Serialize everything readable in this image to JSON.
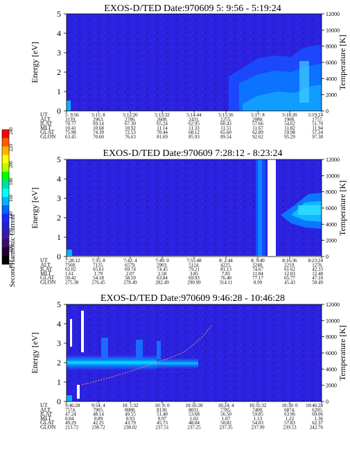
{
  "colorbar": {
    "label": "Second Harmonic Current",
    "ticks": [
      "240",
      "220",
      "200",
      "180",
      "160",
      "140",
      "120",
      "100",
      "80"
    ],
    "colors": [
      "#ff0000",
      "#ff5a00",
      "#ffb400",
      "#ffff00",
      "#b4ff00",
      "#00ff00",
      "#00e0a0",
      "#00ffff",
      "#00b4ff",
      "#0064ff",
      "#1a28ff",
      "#2020d8",
      "#3a1aa0",
      "#3a0a70",
      "#200030",
      "#000000"
    ]
  },
  "chart_data": [
    {
      "type": "heatmap",
      "title": "EXOS-D/TED   Date:970609  5: 9:56 - 5:19:24",
      "ylabel": "Energy [eV]",
      "ylabel_right": "Temperature [K]",
      "ylim": [
        0,
        5
      ],
      "ylim_right": [
        0,
        12000
      ],
      "yticks": [
        "0",
        "1",
        "2",
        "3",
        "4",
        "5"
      ],
      "yticks_right": [
        "0",
        "2000",
        "4000",
        "6000",
        "8000",
        "10000",
        "12000"
      ],
      "rows": [
        {
          "label": "UT",
          "values": [
            "5: 9:56",
            "5:11: 8",
            "5:12:20",
            "5:13:32",
            "5:14:44",
            "5:15:56",
            "5:17: 8",
            "5:18:20",
            "5:19:24"
          ]
        },
        {
          "label": "ALT",
          "values": [
            "3139.",
            "2963.",
            "2786.",
            "2608.",
            "2431.",
            "2255.",
            "2080.",
            "1908.",
            "1757."
          ]
        },
        {
          "label": "ILAT",
          "values": [
            "70.77",
            "69.14",
            "67.30",
            "65.24",
            "62.95",
            "60.43",
            "57.66",
            "54.62",
            "51.70"
          ]
        },
        {
          "label": "MLT",
          "values": [
            "10.41",
            "10.68",
            "10.92",
            "11.14",
            "11.33",
            "11.51",
            "11.67",
            "11.82",
            "11.94"
          ]
        },
        {
          "label": "GLAT",
          "values": [
            "75.98",
            "74.39",
            "72.53",
            "70.44",
            "68.12",
            "65.60",
            "62.89",
            "59.98",
            "57.24"
          ]
        },
        {
          "label": "GLON",
          "values": [
            "63.45",
            "70.60",
            "76.63",
            "81.69",
            "85.93",
            "89.54",
            "92.62",
            "95.29",
            "97.38"
          ]
        }
      ]
    },
    {
      "type": "heatmap",
      "title": "EXOS-D/TED   Date:970609  7:28:12 - 8:23:24",
      "ylabel": "Energy [eV]",
      "ylabel_right": "Temperature [K]",
      "ylim": [
        0,
        5
      ],
      "ylim_right": [
        0,
        12000
      ],
      "yticks": [
        "0",
        "1",
        "2",
        "3",
        "4",
        "5"
      ],
      "yticks_right": [
        "0",
        "2000",
        "4000",
        "6000",
        "8000",
        "10000",
        "12000"
      ],
      "rows": [
        {
          "label": "UT",
          "values": [
            "7:28:12",
            "7:35: 8",
            "7:42: 4",
            "7:49: 0",
            "7:55:48",
            "8: 2:44",
            "8: 9:40",
            "8:16:36",
            "8:23:24"
          ]
        },
        {
          "label": "ALT",
          "values": [
            "7568.",
            "7135.",
            "6579.",
            "5903.",
            "5124.",
            "4225.",
            "3240.",
            "2219.",
            "1276."
          ]
        },
        {
          "label": "ILAT",
          "values": [
            "62.02",
            "65.61",
            "69.74",
            "74.45",
            "79.21",
            "81.13",
            "74.67",
            "61.62",
            "42.33"
          ]
        },
        {
          "label": "MLT",
          "values": [
            "1.61",
            "1.79",
            "2.07",
            "2.58",
            "3.85",
            "7.85",
            "11.04",
            "12.03",
            "12.48"
          ]
        },
        {
          "label": "GLAT",
          "values": [
            "50.42",
            "54.18",
            "58.59",
            "63.84",
            "69.93",
            "76.40",
            "77.17",
            "65.77",
            "47.10"
          ]
        },
        {
          "label": "GLON",
          "values": [
            "275.38",
            "276.45",
            "278.49",
            "282.49",
            "290.99",
            "314.11",
            "8.99",
            "45.43",
            "58.49"
          ]
        }
      ]
    },
    {
      "type": "heatmap",
      "title": "EXOS-D/TED   Date:970609  9:46:28 - 10:46:28",
      "ylabel": "Energy [eV]",
      "ylabel_right": "Temperature [K]",
      "ylim": [
        0,
        5
      ],
      "ylim_right": [
        0,
        12000
      ],
      "yticks": [
        "0",
        "1",
        "2",
        "3",
        "4",
        "5"
      ],
      "yticks_right": [
        "0",
        "2000",
        "4000",
        "6000",
        "8000",
        "10000",
        "12000"
      ],
      "rows": [
        {
          "label": "UT",
          "values": [
            "9:46:28",
            "9:54: 4",
            "10: 1:32",
            "10: 9: 0",
            "10:16:28",
            "10:24: 4",
            "10:31:32",
            "10:39: 0",
            "10:46:28"
          ]
        },
        {
          "label": "ALT",
          "values": [
            "7574.",
            "7905.",
            "8088.",
            "8130.",
            "8031.",
            "7785.",
            "7400.",
            "6874.",
            "6205."
          ]
        },
        {
          "label": "ILAT",
          "values": [
            "47.24",
            "48.14",
            "49.55",
            "51.40",
            "53.68",
            "56.50",
            "59.85",
            "63.96",
            "69.06"
          ]
        },
        {
          "label": "MLT",
          "values": [
            "0.84",
            "0.89",
            "0.93",
            "0.97",
            "1.02",
            "1.07",
            "1.13",
            "1.22",
            "1.36"
          ]
        },
        {
          "label": "GLAT",
          "values": [
            "49.29",
            "42.25",
            "43.79",
            "45.73",
            "48.04",
            "50.82",
            "54.03",
            "57.83",
            "62.37"
          ]
        },
        {
          "label": "GLON",
          "values": [
            "213.72",
            "238.72",
            "238.02",
            "237.51",
            "237.25",
            "237.35",
            "237.99",
            "239.53",
            "242.76"
          ]
        }
      ]
    }
  ]
}
